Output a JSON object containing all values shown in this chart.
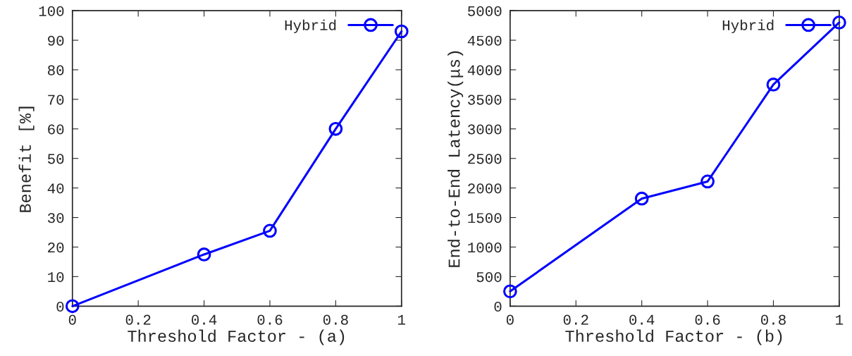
{
  "chart_data": [
    {
      "type": "line",
      "xlabel": "Threshold Factor - (a)",
      "ylabel": "Benefit [%]",
      "x": [
        0,
        0.4,
        0.6,
        0.8,
        1
      ],
      "xlim": [
        0,
        1
      ],
      "xticks": [
        0,
        0.2,
        0.4,
        0.6,
        0.8,
        1
      ],
      "ylim": [
        0,
        100
      ],
      "yticks": [
        0,
        10,
        20,
        30,
        40,
        50,
        60,
        70,
        80,
        90,
        100
      ],
      "series": [
        {
          "name": "Hybrid",
          "color": "#0000ff",
          "values": [
            0,
            17.5,
            25.5,
            60,
            93
          ]
        }
      ],
      "legend": "top right",
      "marker": "circle",
      "line_style": "solid",
      "grid": false
    },
    {
      "type": "line",
      "xlabel": "Threshold Factor - (b)",
      "ylabel": "End-to-End Latency(μs)",
      "x": [
        0,
        0.4,
        0.6,
        0.8,
        1
      ],
      "xlim": [
        0,
        1
      ],
      "xticks": [
        0,
        0.2,
        0.4,
        0.6,
        0.8,
        1
      ],
      "ylim": [
        0,
        5000
      ],
      "yticks": [
        0,
        500,
        1000,
        1500,
        2000,
        2500,
        3000,
        3500,
        4000,
        4500,
        5000
      ],
      "series": [
        {
          "name": "Hybrid",
          "color": "#0000ff",
          "values": [
            250,
            1820,
            2110,
            3750,
            4800
          ]
        }
      ],
      "legend": "top right",
      "marker": "circle",
      "line_style": "solid",
      "grid": false
    }
  ]
}
